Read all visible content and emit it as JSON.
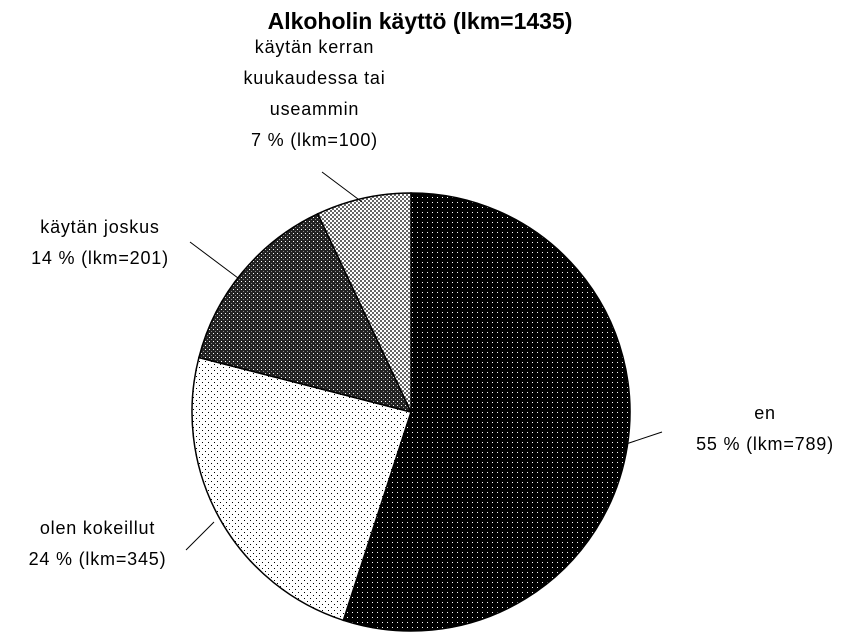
{
  "chart_data": {
    "type": "pie",
    "title": "Alkoholin käyttö (lkm=1435)",
    "categories": [
      "en",
      "olen kokeillut",
      "käytän joskus",
      "käytän kerran kuukaudessa tai useammin"
    ],
    "values": [
      55,
      24,
      14,
      7
    ],
    "value_labels": [
      "55 % (lkm=789)",
      "24 % (lkm=345)",
      "14 % (lkm=201)",
      "7 % (lkm=100)"
    ]
  }
}
